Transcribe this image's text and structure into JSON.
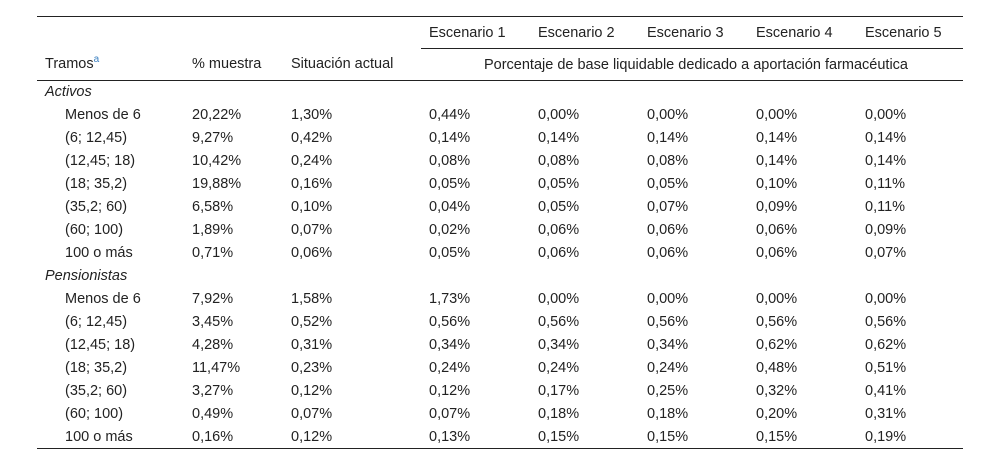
{
  "header": {
    "scenarios": [
      "Escenario 1",
      "Escenario 2",
      "Escenario 3",
      "Escenario 4",
      "Escenario 5"
    ],
    "col_tramos": "Tramos",
    "col_tramos_note": "a",
    "col_muestra": "% muestra",
    "col_situacion": "Situación actual",
    "span_label": "Porcentaje de base liquidable dedicado a aportación farmacéutica"
  },
  "groups": [
    {
      "title": "Activos",
      "rows": [
        {
          "tramo": "Menos de 6",
          "muestra": "20,22%",
          "actual": "1,30%",
          "s1": "0,44%",
          "s2": "0,00%",
          "s3": "0,00%",
          "s4": "0,00%",
          "s5": "0,00%"
        },
        {
          "tramo": "(6; 12,45)",
          "muestra": "9,27%",
          "actual": "0,42%",
          "s1": "0,14%",
          "s2": "0,14%",
          "s3": "0,14%",
          "s4": "0,14%",
          "s5": "0,14%"
        },
        {
          "tramo": "(12,45; 18)",
          "muestra": "10,42%",
          "actual": "0,24%",
          "s1": "0,08%",
          "s2": "0,08%",
          "s3": "0,08%",
          "s4": "0,14%",
          "s5": "0,14%"
        },
        {
          "tramo": "(18; 35,2)",
          "muestra": "19,88%",
          "actual": "0,16%",
          "s1": "0,05%",
          "s2": "0,05%",
          "s3": "0,05%",
          "s4": "0,10%",
          "s5": "0,11%"
        },
        {
          "tramo": "(35,2; 60)",
          "muestra": "6,58%",
          "actual": "0,10%",
          "s1": "0,04%",
          "s2": "0,05%",
          "s3": "0,07%",
          "s4": "0,09%",
          "s5": "0,11%"
        },
        {
          "tramo": "(60; 100)",
          "muestra": "1,89%",
          "actual": "0,07%",
          "s1": "0,02%",
          "s2": "0,06%",
          "s3": "0,06%",
          "s4": "0,06%",
          "s5": "0,09%"
        },
        {
          "tramo": "100 o más",
          "muestra": "0,71%",
          "actual": "0,06%",
          "s1": "0,05%",
          "s2": "0,06%",
          "s3": "0,06%",
          "s4": "0,06%",
          "s5": "0,07%"
        }
      ]
    },
    {
      "title": "Pensionistas",
      "rows": [
        {
          "tramo": "Menos de 6",
          "muestra": "7,92%",
          "actual": "1,58%",
          "s1": "1,73%",
          "s2": "0,00%",
          "s3": "0,00%",
          "s4": "0,00%",
          "s5": "0,00%"
        },
        {
          "tramo": "(6; 12,45)",
          "muestra": "3,45%",
          "actual": "0,52%",
          "s1": "0,56%",
          "s2": "0,56%",
          "s3": "0,56%",
          "s4": "0,56%",
          "s5": "0,56%"
        },
        {
          "tramo": "(12,45; 18)",
          "muestra": "4,28%",
          "actual": "0,31%",
          "s1": "0,34%",
          "s2": "0,34%",
          "s3": "0,34%",
          "s4": "0,62%",
          "s5": "0,62%"
        },
        {
          "tramo": "(18; 35,2)",
          "muestra": "11,47%",
          "actual": "0,23%",
          "s1": "0,24%",
          "s2": "0,24%",
          "s3": "0,24%",
          "s4": "0,48%",
          "s5": "0,51%"
        },
        {
          "tramo": "(35,2; 60)",
          "muestra": "3,27%",
          "actual": "0,12%",
          "s1": "0,12%",
          "s2": "0,17%",
          "s3": "0,25%",
          "s4": "0,32%",
          "s5": "0,41%"
        },
        {
          "tramo": "(60; 100)",
          "muestra": "0,49%",
          "actual": "0,07%",
          "s1": "0,07%",
          "s2": "0,18%",
          "s3": "0,18%",
          "s4": "0,20%",
          "s5": "0,31%"
        },
        {
          "tramo": "100 o más",
          "muestra": "0,16%",
          "actual": "0,12%",
          "s1": "0,13%",
          "s2": "0,15%",
          "s3": "0,15%",
          "s4": "0,15%",
          "s5": "0,19%"
        }
      ]
    }
  ]
}
